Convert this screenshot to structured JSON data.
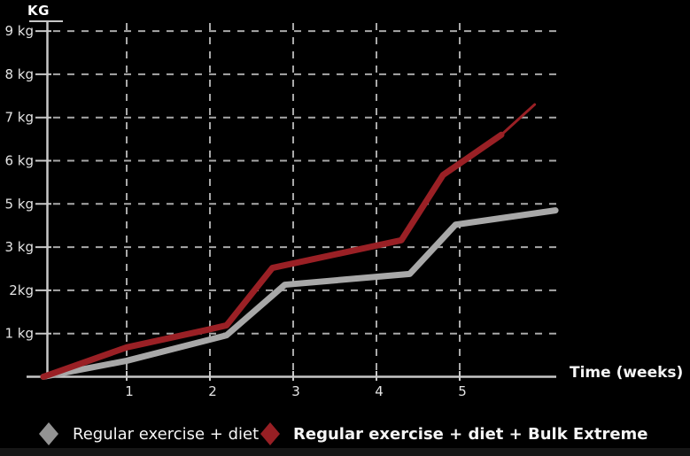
{
  "titles": {
    "y_axis": "KG",
    "x_axis": "Time (weeks)"
  },
  "legend": [
    {
      "label": "Regular exercise + diet",
      "color": "#939393",
      "bold": false
    },
    {
      "label": "Regular exercise + diet + Bulk Extreme",
      "color": "#971f24",
      "bold": true
    }
  ],
  "chart_data": {
    "type": "line",
    "title": "",
    "xlabel": "Time (weeks)",
    "ylabel": "KG",
    "x_ticks": [
      "1",
      "2",
      "3",
      "4",
      "5"
    ],
    "y_tick_labels_bottom_to_top": [
      "1 kg",
      "2kg",
      "3 kg",
      "5 kg",
      "6 kg",
      "7 kg",
      "8 kg",
      "9 kg"
    ],
    "axis_note": "8 evenly spaced dashed gridlines; original labels skip '4 kg'",
    "xlim": [
      0,
      6.2
    ],
    "ylim_grid_units": [
      0,
      9
    ],
    "grid": "dashed",
    "legend_position": "bottom",
    "series": [
      {
        "name": "Regular exercise + diet",
        "color": "#a8a8a8",
        "width": 7,
        "taper_end": false,
        "points": [
          [
            0,
            0
          ],
          [
            1,
            0.37
          ],
          [
            2,
            0.86
          ],
          [
            2.2,
            0.96
          ],
          [
            2.9,
            2.13
          ],
          [
            4.4,
            2.38
          ],
          [
            4.95,
            3.52
          ],
          [
            6.15,
            3.85
          ]
        ]
      },
      {
        "name": "Regular exercise + diet + Bulk Extreme",
        "color": "#9a2025",
        "width": 7,
        "taper_end": true,
        "points": [
          [
            0,
            0
          ],
          [
            1,
            0.68
          ],
          [
            2,
            1.1
          ],
          [
            2.2,
            1.19
          ],
          [
            2.75,
            2.52
          ],
          [
            4.3,
            3.16
          ],
          [
            4.8,
            4.67
          ],
          [
            5.5,
            5.6
          ],
          [
            5.9,
            6.3
          ]
        ]
      }
    ],
    "colors": {
      "background": "#000000",
      "gridline": "#a9a9a9",
      "axis": "#c8c8c8",
      "tick_text": "#e4e4e4"
    }
  }
}
